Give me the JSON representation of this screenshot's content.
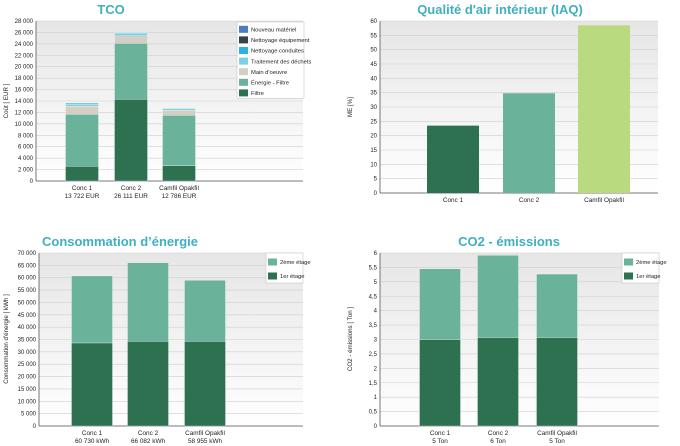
{
  "colors": {
    "title": "#3fb0c0",
    "panel_top": "#e7e7e7",
    "panel_bottom": "#ffffff",
    "grid": "#cfcfcf",
    "axis": "#555555"
  },
  "chart_data": [
    {
      "type": "bar",
      "stacked": true,
      "title": "TCO",
      "ylabel": "Coût [ EUR ]",
      "ylim": [
        0,
        28000
      ],
      "yticks": [
        "0",
        "2 000",
        "4 000",
        "6 000",
        "8 000",
        "10 000",
        "12 000",
        "14 000",
        "16 000",
        "18 000",
        "20 000",
        "22 000",
        "24 000",
        "26 000",
        "28 000"
      ],
      "grid": true,
      "legend_position": "top-right",
      "categories": [
        "Conc 1",
        "Conc 2",
        "Camfil Opakfil"
      ],
      "category_sublabels": [
        "13 722 EUR",
        "26 111 EUR",
        "12 786 EUR"
      ],
      "series": [
        {
          "name": "Filtre",
          "color": "#2e7150",
          "values": [
            2600,
            14300,
            2700
          ]
        },
        {
          "name": "Énergie - Filtre",
          "color": "#6ab39a",
          "values": [
            9100,
            9800,
            8800
          ]
        },
        {
          "name": "Main d'oeuvre",
          "color": "#d4cfc2",
          "values": [
            1400,
            1300,
            900
          ]
        },
        {
          "name": "Traitement des déchets",
          "color": "#7dd0e4",
          "values": [
            350,
            450,
            250
          ]
        },
        {
          "name": "Nettoyage conduites",
          "color": "#2ab3e0",
          "values": [
            150,
            120,
            80
          ]
        },
        {
          "name": "Nettoyage équipement",
          "color": "#37424a",
          "values": [
            60,
            80,
            30
          ]
        },
        {
          "name": "Nouveau matériel",
          "color": "#4a7dc5",
          "values": [
            60,
            61,
            26
          ]
        }
      ]
    },
    {
      "type": "bar",
      "title": "Qualité d'air intérieur (IAQ)",
      "ylabel": "ME [%]",
      "ylim": [
        0,
        60
      ],
      "yticks": [
        "0",
        "5",
        "10",
        "15",
        "20",
        "25",
        "30",
        "35",
        "40",
        "45",
        "50",
        "55",
        "60"
      ],
      "grid": true,
      "categories": [
        "Conc 1",
        "Conc 2",
        "Camfil Opakfil"
      ],
      "values": [
        23.5,
        34.8,
        58.5
      ],
      "colors": [
        "#2e7150",
        "#6ab39a",
        "#bada80"
      ]
    },
    {
      "type": "bar",
      "stacked": true,
      "title": "Consommation d’énergie",
      "ylabel": "Consommation d'énergie [ kWh ]",
      "ylim": [
        0,
        70000
      ],
      "yticks": [
        "0",
        "5 000",
        "10 000",
        "15 000",
        "20 000",
        "25 000",
        "30 000",
        "35 000",
        "40 000",
        "45 000",
        "50 000",
        "55 000",
        "60 000",
        "65 000",
        "70 000"
      ],
      "grid": true,
      "legend_position": "top-right",
      "categories": [
        "Conc 1",
        "Conc 2",
        "Camfil Opakfil"
      ],
      "category_sublabels": [
        "60 730 kWh",
        "66 082 kWh",
        "58 955 kWh"
      ],
      "series": [
        {
          "name": "1er étage",
          "color": "#2e7150",
          "values": [
            33600,
            34300,
            34300
          ]
        },
        {
          "name": "2ème étage",
          "color": "#6ab39a",
          "values": [
            27130,
            31782,
            24655
          ]
        }
      ]
    },
    {
      "type": "bar",
      "stacked": true,
      "title": "CO2 - émissions",
      "ylabel": "CO2 - émissions [ Ton ]",
      "ylim": [
        0,
        6
      ],
      "yticks": [
        "0",
        "0,5",
        "1",
        "1,5",
        "2",
        "2,5",
        "3",
        "3,5",
        "4",
        "4,5",
        "5",
        "5,5",
        "6"
      ],
      "grid": true,
      "legend_position": "top-right",
      "categories": [
        "Conc 1",
        "Conc 2",
        "Camfil Opakfil"
      ],
      "category_sublabels": [
        "5 Ton",
        "6 Ton",
        "5 Ton"
      ],
      "series": [
        {
          "name": "1er étage",
          "color": "#2e7150",
          "values": [
            3.0,
            3.07,
            3.07
          ]
        },
        {
          "name": "2ème étage",
          "color": "#6ab39a",
          "values": [
            2.45,
            2.85,
            2.2
          ]
        }
      ]
    }
  ]
}
